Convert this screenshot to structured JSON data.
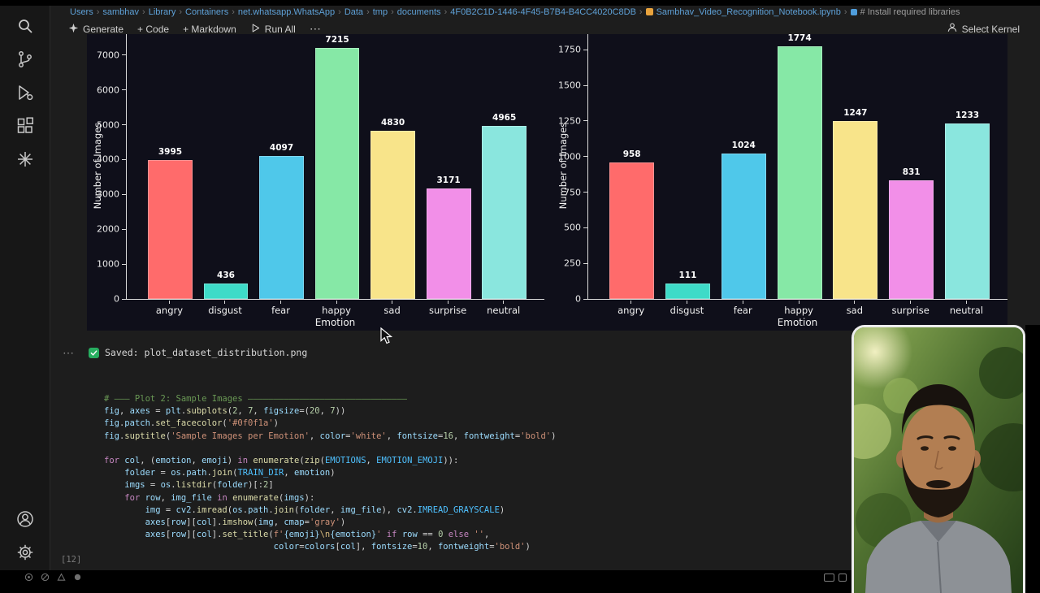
{
  "breadcrumb": {
    "separator": "›",
    "path": [
      "Users",
      "sambhav",
      "Library",
      "Containers",
      "net.whatsapp.WhatsApp",
      "Data",
      "tmp",
      "documents",
      "4F0B2C1D-1446-4F45-B7B4-B4CC4020C8DB"
    ],
    "file": "Sambhav_Video_Recognition_Notebook.ipynb",
    "section": "# Install required libraries"
  },
  "toolbar": {
    "generate": "Generate",
    "add_code": "+ Code",
    "add_markdown": "+ Markdown",
    "run_all": "Run All",
    "more": "⋯",
    "select_kernel": "Select Kernel"
  },
  "chart_output": {
    "more": "⋯",
    "saved_text": "Saved: plot_dataset_distribution.png"
  },
  "chart_data": [
    {
      "type": "bar",
      "categories": [
        "angry",
        "disgust",
        "fear",
        "happy",
        "sad",
        "surprise",
        "neutral"
      ],
      "values": [
        3995,
        436,
        4097,
        7215,
        4830,
        3171,
        4965
      ],
      "colors": [
        "#ff6b6b",
        "#3edbc8",
        "#4fc8ea",
        "#86e8a6",
        "#f8e48a",
        "#f28fe8",
        "#8ae6de"
      ],
      "xlabel": "Emotion",
      "ylabel": "Number of Images",
      "yticks": [
        0,
        1000,
        2000,
        3000,
        4000,
        5000,
        6000,
        7000
      ],
      "ylim": [
        0,
        7600
      ],
      "background": "#0f0f1a",
      "legend": null,
      "grid": false
    },
    {
      "type": "bar",
      "categories": [
        "angry",
        "disgust",
        "fear",
        "happy",
        "sad",
        "surprise",
        "neutral"
      ],
      "values": [
        958,
        111,
        1024,
        1774,
        1247,
        831,
        1233
      ],
      "colors": [
        "#ff6b6b",
        "#3edbc8",
        "#4fc8ea",
        "#86e8a6",
        "#f8e48a",
        "#f28fe8",
        "#8ae6de"
      ],
      "xlabel": "Emotion",
      "ylabel": "Number of Images",
      "yticks": [
        0,
        250,
        500,
        750,
        1000,
        1250,
        1500,
        1750
      ],
      "ylim": [
        0,
        1860
      ],
      "background": "#0f0f1a",
      "legend": null,
      "grid": false
    }
  ],
  "code_cell": {
    "execution_count": "[12]",
    "lines": [
      [
        [
          "cm",
          "# ——— Plot 2: Sample Images ———————————————————————————————"
        ]
      ],
      [
        [
          "va",
          "fig"
        ],
        [
          "pl",
          ", "
        ],
        [
          "va",
          "axes"
        ],
        [
          "pl",
          " = "
        ],
        [
          "va",
          "plt"
        ],
        [
          "pl",
          "."
        ],
        [
          "fn",
          "subplots"
        ],
        [
          "pl",
          "("
        ],
        [
          "nu",
          "2"
        ],
        [
          "pl",
          ", "
        ],
        [
          "nu",
          "7"
        ],
        [
          "pl",
          ", "
        ],
        [
          "va",
          "figsize"
        ],
        [
          "pl",
          "=("
        ],
        [
          "nu",
          "20"
        ],
        [
          "pl",
          ", "
        ],
        [
          "nu",
          "7"
        ],
        [
          "pl",
          "))"
        ]
      ],
      [
        [
          "va",
          "fig"
        ],
        [
          "pl",
          "."
        ],
        [
          "va",
          "patch"
        ],
        [
          "pl",
          "."
        ],
        [
          "fn",
          "set_facecolor"
        ],
        [
          "pl",
          "("
        ],
        [
          "st",
          "'#0f0f1a'"
        ],
        [
          "pl",
          ")"
        ]
      ],
      [
        [
          "va",
          "fig"
        ],
        [
          "pl",
          "."
        ],
        [
          "fn",
          "suptitle"
        ],
        [
          "pl",
          "("
        ],
        [
          "st",
          "'Sample Images per Emotion'"
        ],
        [
          "pl",
          ", "
        ],
        [
          "va",
          "color"
        ],
        [
          "pl",
          "="
        ],
        [
          "st",
          "'white'"
        ],
        [
          "pl",
          ", "
        ],
        [
          "va",
          "fontsize"
        ],
        [
          "pl",
          "="
        ],
        [
          "nu",
          "16"
        ],
        [
          "pl",
          ", "
        ],
        [
          "va",
          "fontweight"
        ],
        [
          "pl",
          "="
        ],
        [
          "st",
          "'bold'"
        ],
        [
          "pl",
          ")"
        ]
      ],
      [],
      [
        [
          "kw",
          "for"
        ],
        [
          "pl",
          " "
        ],
        [
          "va",
          "col"
        ],
        [
          "pl",
          ", ("
        ],
        [
          "va",
          "emotion"
        ],
        [
          "pl",
          ", "
        ],
        [
          "va",
          "emoji"
        ],
        [
          "pl",
          ") "
        ],
        [
          "kw",
          "in"
        ],
        [
          "pl",
          " "
        ],
        [
          "fn",
          "enumerate"
        ],
        [
          "pl",
          "("
        ],
        [
          "fn",
          "zip"
        ],
        [
          "pl",
          "("
        ],
        [
          "co",
          "EMOTIONS"
        ],
        [
          "pl",
          ", "
        ],
        [
          "co",
          "EMOTION_EMOJI"
        ],
        [
          "pl",
          ")):"
        ]
      ],
      [
        [
          "pl",
          "    "
        ],
        [
          "va",
          "folder"
        ],
        [
          "pl",
          " = "
        ],
        [
          "va",
          "os"
        ],
        [
          "pl",
          "."
        ],
        [
          "va",
          "path"
        ],
        [
          "pl",
          "."
        ],
        [
          "fn",
          "join"
        ],
        [
          "pl",
          "("
        ],
        [
          "co",
          "TRAIN_DIR"
        ],
        [
          "pl",
          ", "
        ],
        [
          "va",
          "emotion"
        ],
        [
          "pl",
          ")"
        ]
      ],
      [
        [
          "pl",
          "    "
        ],
        [
          "va",
          "imgs"
        ],
        [
          "pl",
          " = "
        ],
        [
          "va",
          "os"
        ],
        [
          "pl",
          "."
        ],
        [
          "fn",
          "listdir"
        ],
        [
          "pl",
          "("
        ],
        [
          "va",
          "folder"
        ],
        [
          "pl",
          ")[:"
        ],
        [
          "nu",
          "2"
        ],
        [
          "pl",
          "]"
        ]
      ],
      [
        [
          "pl",
          "    "
        ],
        [
          "kw",
          "for"
        ],
        [
          "pl",
          " "
        ],
        [
          "va",
          "row"
        ],
        [
          "pl",
          ", "
        ],
        [
          "va",
          "img_file"
        ],
        [
          "pl",
          " "
        ],
        [
          "kw",
          "in"
        ],
        [
          "pl",
          " "
        ],
        [
          "fn",
          "enumerate"
        ],
        [
          "pl",
          "("
        ],
        [
          "va",
          "imgs"
        ],
        [
          "pl",
          "):"
        ]
      ],
      [
        [
          "pl",
          "        "
        ],
        [
          "va",
          "img"
        ],
        [
          "pl",
          " = "
        ],
        [
          "va",
          "cv2"
        ],
        [
          "pl",
          "."
        ],
        [
          "fn",
          "imread"
        ],
        [
          "pl",
          "("
        ],
        [
          "va",
          "os"
        ],
        [
          "pl",
          "."
        ],
        [
          "va",
          "path"
        ],
        [
          "pl",
          "."
        ],
        [
          "fn",
          "join"
        ],
        [
          "pl",
          "("
        ],
        [
          "va",
          "folder"
        ],
        [
          "pl",
          ", "
        ],
        [
          "va",
          "img_file"
        ],
        [
          "pl",
          "), "
        ],
        [
          "va",
          "cv2"
        ],
        [
          "pl",
          "."
        ],
        [
          "co",
          "IMREAD_GRAYSCALE"
        ],
        [
          "pl",
          ")"
        ]
      ],
      [
        [
          "pl",
          "        "
        ],
        [
          "va",
          "axes"
        ],
        [
          "pl",
          "["
        ],
        [
          "va",
          "row"
        ],
        [
          "pl",
          "]["
        ],
        [
          "va",
          "col"
        ],
        [
          "pl",
          "]."
        ],
        [
          "fn",
          "imshow"
        ],
        [
          "pl",
          "("
        ],
        [
          "va",
          "img"
        ],
        [
          "pl",
          ", "
        ],
        [
          "va",
          "cmap"
        ],
        [
          "pl",
          "="
        ],
        [
          "st",
          "'gray'"
        ],
        [
          "pl",
          ")"
        ]
      ],
      [
        [
          "pl",
          "        "
        ],
        [
          "va",
          "axes"
        ],
        [
          "pl",
          "["
        ],
        [
          "va",
          "row"
        ],
        [
          "pl",
          "]["
        ],
        [
          "va",
          "col"
        ],
        [
          "pl",
          "]."
        ],
        [
          "fn",
          "set_title"
        ],
        [
          "pl",
          "("
        ],
        [
          "st",
          "f'"
        ],
        [
          "va",
          "{emoji}"
        ],
        [
          "es",
          "\\n"
        ],
        [
          "va",
          "{emotion}"
        ],
        [
          "st",
          "'"
        ],
        [
          "pl",
          " "
        ],
        [
          "kw",
          "if"
        ],
        [
          "pl",
          " "
        ],
        [
          "va",
          "row"
        ],
        [
          "pl",
          " == "
        ],
        [
          "nu",
          "0"
        ],
        [
          "pl",
          " "
        ],
        [
          "kw",
          "else"
        ],
        [
          "pl",
          " "
        ],
        [
          "st",
          "''"
        ],
        [
          "pl",
          ","
        ]
      ],
      [
        [
          "pl",
          "                                 "
        ],
        [
          "va",
          "color"
        ],
        [
          "pl",
          "="
        ],
        [
          "va",
          "colors"
        ],
        [
          "pl",
          "["
        ],
        [
          "va",
          "col"
        ],
        [
          "pl",
          "], "
        ],
        [
          "va",
          "fontsize"
        ],
        [
          "pl",
          "="
        ],
        [
          "nu",
          "10"
        ],
        [
          "pl",
          ", "
        ],
        [
          "va",
          "fontweight"
        ],
        [
          "pl",
          "="
        ],
        [
          "st",
          "'bold'"
        ],
        [
          "pl",
          ")"
        ]
      ]
    ]
  }
}
